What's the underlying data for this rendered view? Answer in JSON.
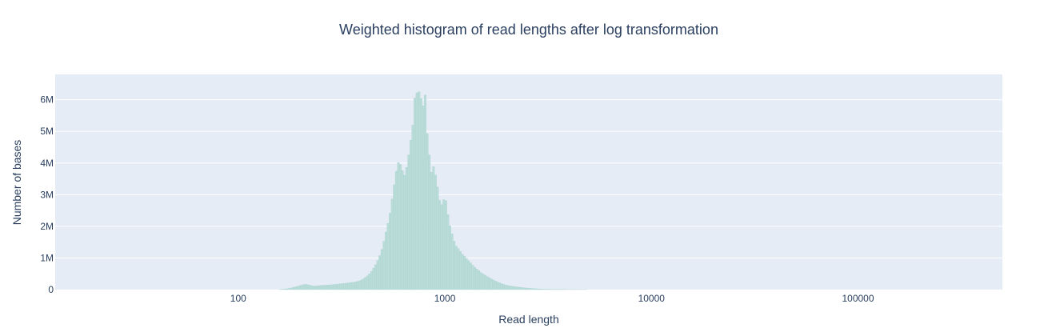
{
  "chart_data": {
    "type": "bar",
    "title": "Weighted histogram of read lengths after log transformation",
    "xlabel": "Read length",
    "ylabel": "Number of bases",
    "x_scale": "log",
    "xlim": [
      13,
      500000
    ],
    "ylim": [
      0,
      6800000
    ],
    "x_ticks": [
      {
        "value": 100,
        "label": "100"
      },
      {
        "value": 1000,
        "label": "1000"
      },
      {
        "value": 10000,
        "label": "10000"
      },
      {
        "value": 100000,
        "label": "100000"
      }
    ],
    "y_ticks": [
      {
        "value": 0,
        "label": "0"
      },
      {
        "value": 1000000,
        "label": "1M"
      },
      {
        "value": 2000000,
        "label": "2M"
      },
      {
        "value": 3000000,
        "label": "3M"
      },
      {
        "value": 4000000,
        "label": "4M"
      },
      {
        "value": 5000000,
        "label": "5M"
      },
      {
        "value": 6000000,
        "label": "6M"
      }
    ],
    "grid": true,
    "colors": {
      "plot_background": "#e5ecf6",
      "bar_fill": "#b9dcd9",
      "bar_stroke": "#a7d0cc",
      "grid": "#ffffff",
      "text": "#2a3f5f"
    },
    "bin_edges_summary": "log10 bins of width 0.01",
    "series": [
      {
        "values_x": [
          160,
          170,
          180,
          190,
          200,
          210,
          220,
          230,
          240,
          250,
          265,
          280,
          300,
          320,
          340,
          360,
          380,
          400,
          420,
          440,
          460,
          480,
          500,
          520,
          540,
          560,
          580,
          600,
          620,
          640,
          660,
          680,
          700,
          720,
          740,
          760,
          780,
          800,
          820,
          840,
          860,
          880,
          900,
          920,
          940,
          960,
          980,
          1000,
          1020,
          1040,
          1060,
          1080,
          1100,
          1120,
          1140,
          1160,
          1180,
          1200,
          1250,
          1300,
          1350,
          1400,
          1450,
          1500,
          1600,
          1700,
          1800,
          1900,
          2000,
          2200,
          2400,
          2600,
          2800,
          3000,
          3300,
          3600,
          4000,
          4500,
          5000
        ],
        "values": [
          5000,
          20000,
          50000,
          90000,
          130000,
          170000,
          150000,
          110000,
          120000,
          130000,
          140000,
          150000,
          170000,
          190000,
          210000,
          230000,
          260000,
          320000,
          420000,
          560000,
          760000,
          1000000,
          1350000,
          1850000,
          2300000,
          3000000,
          3700000,
          4100000,
          3800000,
          3600000,
          4000000,
          4600000,
          5200000,
          6250000,
          6200000,
          6300000,
          5600000,
          6400000,
          5000000,
          4300000,
          3700000,
          3900000,
          3650000,
          3300000,
          2850000,
          2700000,
          2650000,
          3100000,
          2600000,
          2300000,
          2000000,
          1800000,
          1600000,
          1450000,
          1350000,
          1300000,
          1250000,
          1150000,
          1050000,
          920000,
          800000,
          700000,
          620000,
          530000,
          420000,
          320000,
          240000,
          180000,
          130000,
          90000,
          60000,
          40000,
          25000,
          15000,
          9000,
          5000,
          2500,
          1000,
          0
        ]
      }
    ]
  }
}
